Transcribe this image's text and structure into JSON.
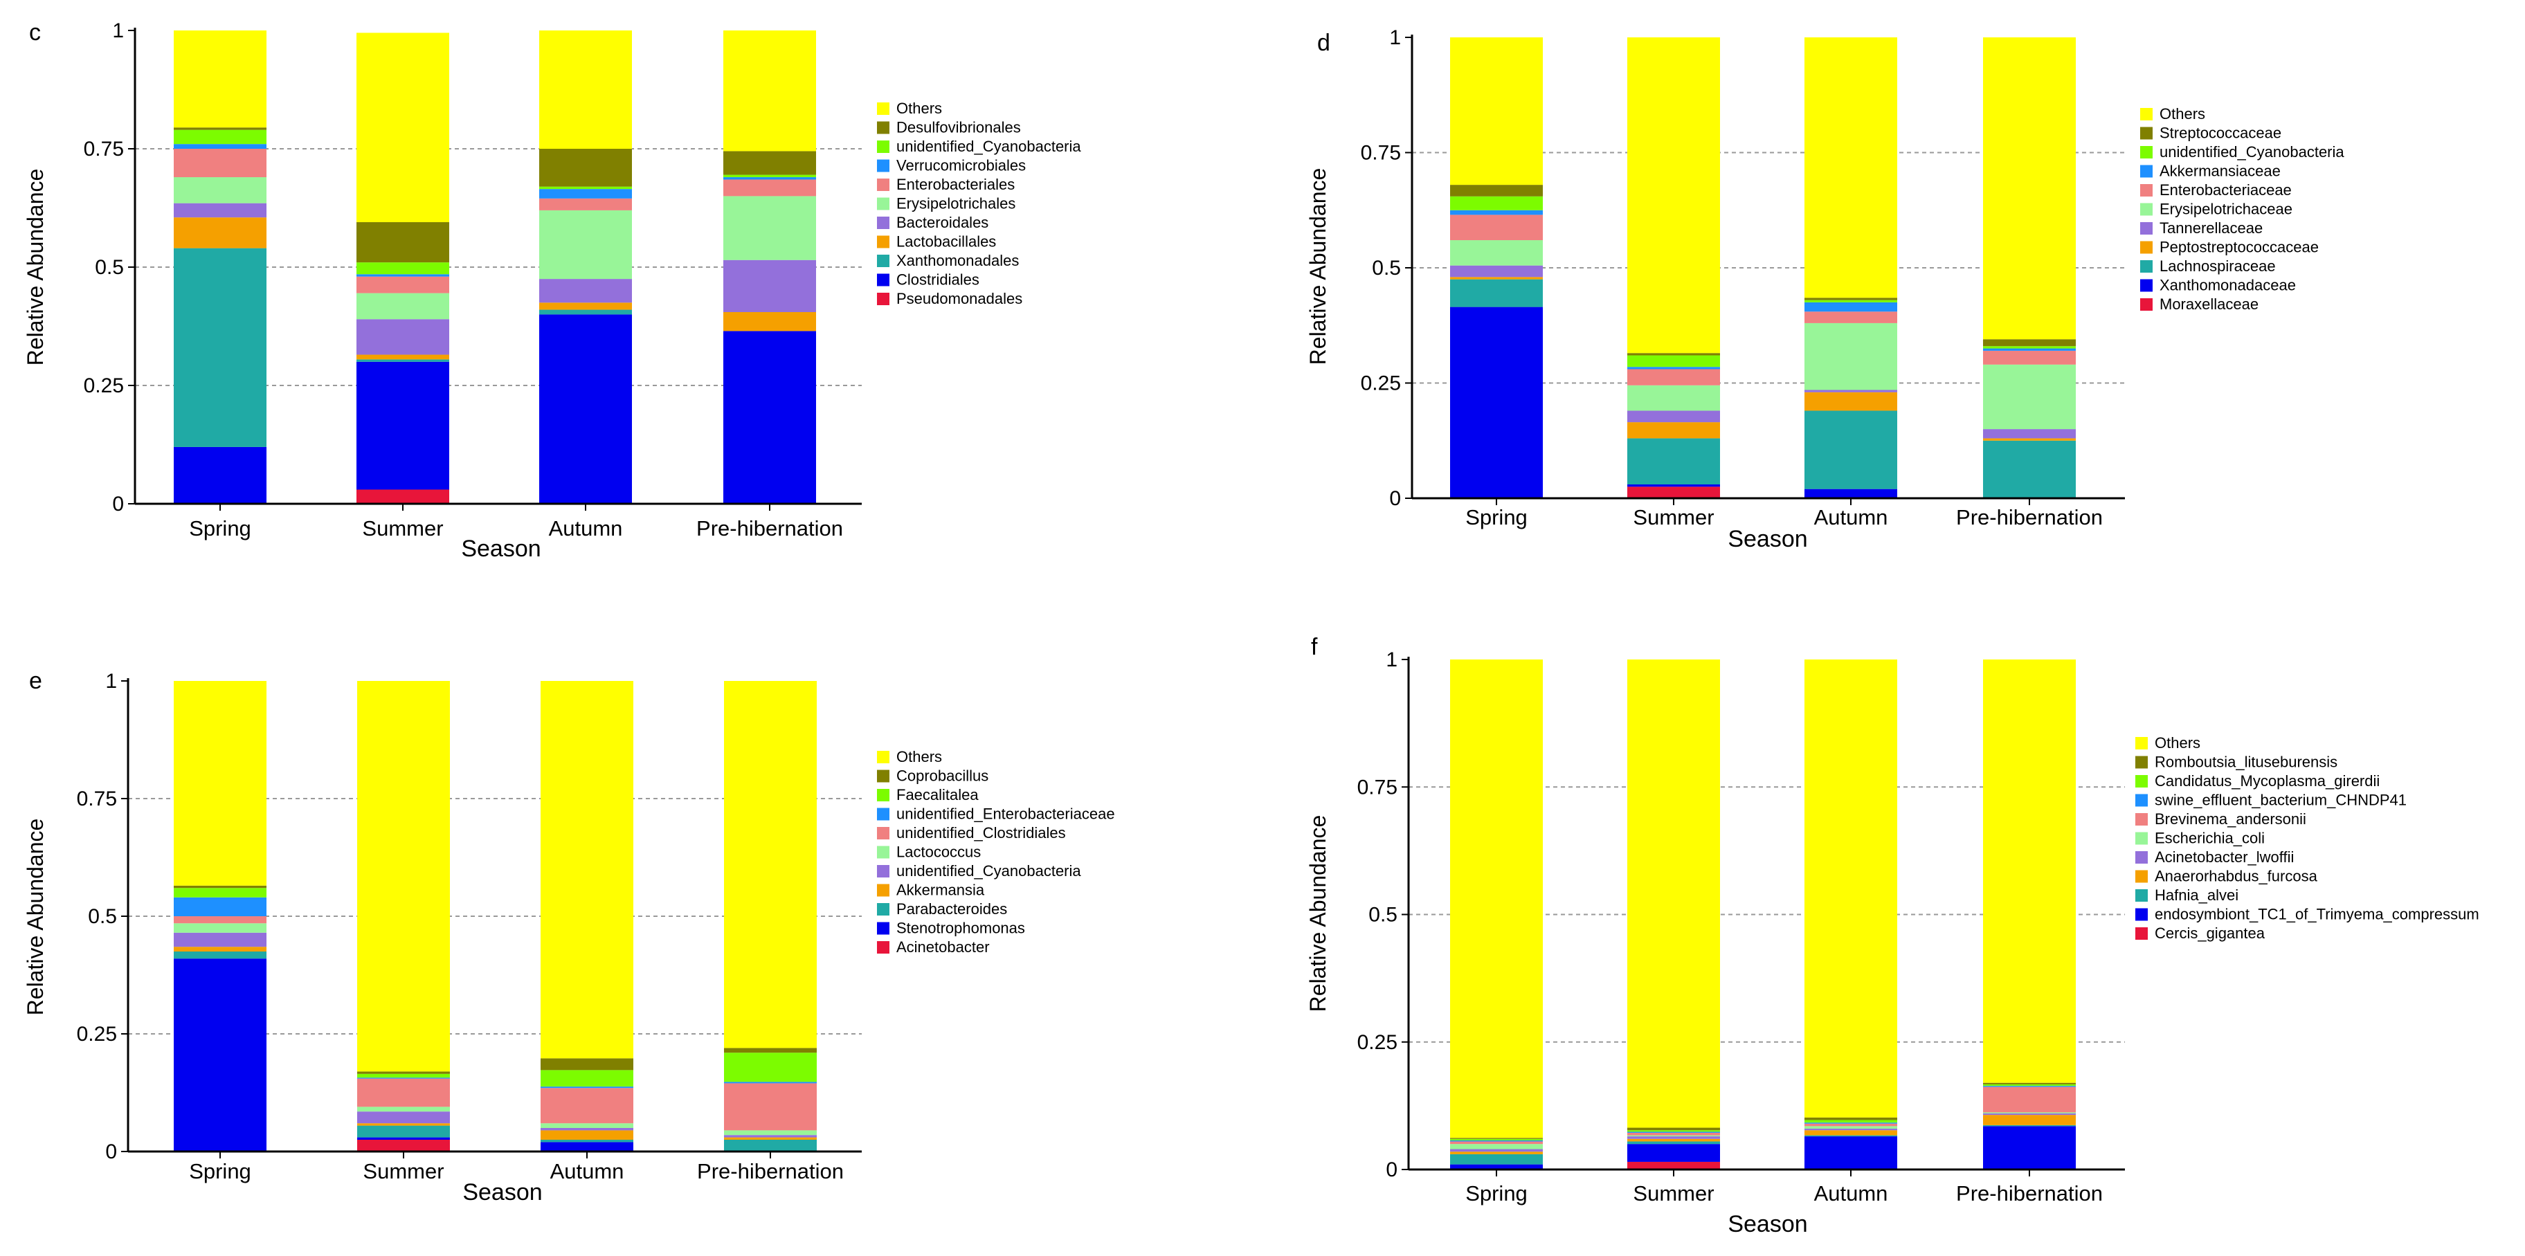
{
  "chart_data": [
    {
      "panel": "c",
      "type": "bar",
      "stacked": true,
      "xlabel": "Season",
      "ylabel": "Relative Abundance",
      "ylim": [
        0,
        1
      ],
      "yticks": [
        "0",
        "0.25",
        "0.5",
        "0.75",
        "1"
      ],
      "categories": [
        "Spring",
        "Summer",
        "Autumn",
        "Pre-hibernation"
      ],
      "series": [
        {
          "name": "Pseudomonadales",
          "color": "#e8153a",
          "values": [
            0,
            0.03,
            0,
            0
          ]
        },
        {
          "name": "Clostridiales",
          "color": "#0000f0",
          "values": [
            0.12,
            0.27,
            0.4,
            0.365
          ]
        },
        {
          "name": "Xanthomonadales",
          "color": "#20aaa5",
          "values": [
            0.42,
            0.005,
            0.01,
            0
          ]
        },
        {
          "name": "Lactobacillales",
          "color": "#f5a000",
          "values": [
            0.065,
            0.01,
            0.015,
            0.04
          ]
        },
        {
          "name": "Bacteroidales",
          "color": "#9370db",
          "values": [
            0.03,
            0.075,
            0.05,
            0.11
          ]
        },
        {
          "name": "Erysipelotrichales",
          "color": "#98f598",
          "values": [
            0.055,
            0.055,
            0.145,
            0.135
          ]
        },
        {
          "name": "Enterobacteriales",
          "color": "#f08080",
          "values": [
            0.06,
            0.035,
            0.025,
            0.035
          ]
        },
        {
          "name": "Verrucomicrobiales",
          "color": "#1e90ff",
          "values": [
            0.01,
            0.005,
            0.02,
            0.005
          ]
        },
        {
          "name": "unidentified_Cyanobacteria",
          "color": "#7cfc00",
          "values": [
            0.03,
            0.025,
            0.005,
            0.005
          ]
        },
        {
          "name": "Desulfovibrionales",
          "color": "#808000",
          "values": [
            0.005,
            0.085,
            0.08,
            0.05
          ]
        },
        {
          "name": "Others",
          "color": "#ffff00",
          "values": [
            0.205,
            0.4,
            0.25,
            0.255
          ]
        }
      ]
    },
    {
      "panel": "d",
      "type": "bar",
      "stacked": true,
      "xlabel": "Season",
      "ylabel": "Relative Abundance",
      "ylim": [
        0,
        1
      ],
      "yticks": [
        "0",
        "0.25",
        "0.5",
        "0.75",
        "1"
      ],
      "categories": [
        "Spring",
        "Summer",
        "Autumn",
        "Pre-hibernation"
      ],
      "series": [
        {
          "name": "Moraxellaceae",
          "color": "#e8153a",
          "values": [
            0,
            0.025,
            0,
            0
          ]
        },
        {
          "name": "Xanthomonadaceae",
          "color": "#0000f0",
          "values": [
            0.415,
            0.005,
            0.02,
            0
          ]
        },
        {
          "name": "Lachnospiraceae",
          "color": "#20aaa5",
          "values": [
            0.06,
            0.1,
            0.17,
            0.125
          ]
        },
        {
          "name": "Peptostreptococcaceae",
          "color": "#f5a000",
          "values": [
            0.005,
            0.035,
            0.04,
            0.005
          ]
        },
        {
          "name": "Tannerellaceae",
          "color": "#9370db",
          "values": [
            0.025,
            0.025,
            0.005,
            0.02
          ]
        },
        {
          "name": "Erysipelotrichaceae",
          "color": "#98f598",
          "values": [
            0.055,
            0.055,
            0.145,
            0.14
          ]
        },
        {
          "name": "Enterobacteriaceae",
          "color": "#f08080",
          "values": [
            0.055,
            0.035,
            0.025,
            0.03
          ]
        },
        {
          "name": "Akkermansiaceae",
          "color": "#1e90ff",
          "values": [
            0.01,
            0.005,
            0.02,
            0.005
          ]
        },
        {
          "name": "unidentified_Cyanobacteria",
          "color": "#7cfc00",
          "values": [
            0.03,
            0.025,
            0.005,
            0.005
          ]
        },
        {
          "name": "Streptococcaceae",
          "color": "#808000",
          "values": [
            0.025,
            0.005,
            0.005,
            0.015
          ]
        },
        {
          "name": "Others",
          "color": "#ffff00",
          "values": [
            0.32,
            0.685,
            0.565,
            0.655
          ]
        }
      ]
    },
    {
      "panel": "e",
      "type": "bar",
      "stacked": true,
      "xlabel": "Season",
      "ylabel": "Relative Abundance",
      "ylim": [
        0,
        1
      ],
      "yticks": [
        "0",
        "0.25",
        "0.5",
        "0.75",
        "1"
      ],
      "categories": [
        "Spring",
        "Summer",
        "Autumn",
        "Pre-hibernation"
      ],
      "series": [
        {
          "name": "Acinetobacter",
          "color": "#e8153a",
          "values": [
            0,
            0.025,
            0,
            0
          ]
        },
        {
          "name": "Stenotrophomonas",
          "color": "#0000f0",
          "values": [
            0.41,
            0.005,
            0.02,
            0
          ]
        },
        {
          "name": "Parabacteroides",
          "color": "#20aaa5",
          "values": [
            0.015,
            0.025,
            0.005,
            0.025
          ]
        },
        {
          "name": "Akkermansia",
          "color": "#f5a000",
          "values": [
            0.01,
            0.005,
            0.02,
            0.005
          ]
        },
        {
          "name": "unidentified_Cyanobacteria",
          "color": "#9370db",
          "values": [
            0.03,
            0.025,
            0.005,
            0.005
          ]
        },
        {
          "name": "Lactococcus",
          "color": "#98f598",
          "values": [
            0.02,
            0.01,
            0.01,
            0.01
          ]
        },
        {
          "name": "unidentified_Clostridiales",
          "color": "#f08080",
          "values": [
            0.015,
            0.06,
            0.075,
            0.1
          ]
        },
        {
          "name": "unidentified_Enterobacteriaceae",
          "color": "#1e90ff",
          "values": [
            0.04,
            0.002,
            0.003,
            0.003
          ]
        },
        {
          "name": "Faecalitalea",
          "color": "#7cfc00",
          "values": [
            0.02,
            0.008,
            0.035,
            0.062
          ]
        },
        {
          "name": "Coprobacillus",
          "color": "#808000",
          "values": [
            0.005,
            0.005,
            0.025,
            0.01
          ]
        },
        {
          "name": "Others",
          "color": "#ffff00",
          "values": [
            0.435,
            0.83,
            0.802,
            0.78
          ]
        }
      ]
    },
    {
      "panel": "f",
      "type": "bar",
      "stacked": true,
      "xlabel": "Season",
      "ylabel": "Relative Abundance",
      "ylim": [
        0,
        1
      ],
      "yticks": [
        "0",
        "0.25",
        "0.5",
        "0.75",
        "1"
      ],
      "categories": [
        "Spring",
        "Summer",
        "Autumn",
        "Pre-hibernation"
      ],
      "series": [
        {
          "name": "Cercis_gigantea",
          "color": "#e8153a",
          "values": [
            0,
            0.015,
            0,
            0
          ]
        },
        {
          "name": "endosymbiont_TC1_of_Trimyema_compressum",
          "color": "#0000f0",
          "values": [
            0.01,
            0.035,
            0.065,
            0.085
          ]
        },
        {
          "name": "Hafnia_alvei",
          "color": "#20aaa5",
          "values": [
            0.02,
            0.005,
            0.002,
            0.002
          ]
        },
        {
          "name": "Anaerorhabdus_furcosa",
          "color": "#f5a000",
          "values": [
            0.005,
            0.005,
            0.01,
            0.02
          ]
        },
        {
          "name": "Acinetobacter_lwoffii",
          "color": "#9370db",
          "values": [
            0.005,
            0.005,
            0.003,
            0.003
          ]
        },
        {
          "name": "Escherichia_coli",
          "color": "#98f598",
          "values": [
            0.01,
            0.002,
            0.005,
            0.002
          ]
        },
        {
          "name": "Brevinema_andersonii",
          "color": "#f08080",
          "values": [
            0.005,
            0.005,
            0.005,
            0.05
          ]
        },
        {
          "name": "swine_effluent_bacterium_CHNDP41",
          "color": "#1e90ff",
          "values": [
            0.002,
            0.002,
            0.002,
            0.002
          ]
        },
        {
          "name": "Candidatus_Mycoplasma_girerdii",
          "color": "#7cfc00",
          "values": [
            0.003,
            0.003,
            0.005,
            0.003
          ]
        },
        {
          "name": "Romboutsia_lituseburensis",
          "color": "#808000",
          "values": [
            0.002,
            0.005,
            0.005,
            0.003
          ]
        },
        {
          "name": "Others",
          "color": "#ffff00",
          "values": [
            0.938,
            0.918,
            0.898,
            0.83
          ]
        }
      ]
    }
  ]
}
